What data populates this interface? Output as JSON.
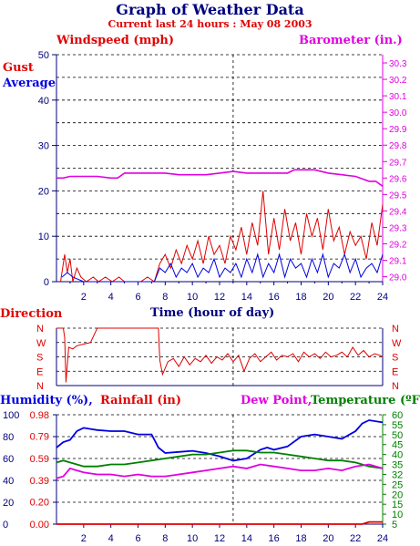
{
  "title": "Graph of Weather Data",
  "subtitle": "Current last 24 hours : May 08 2003",
  "colors": {
    "navy": "#00007f",
    "red": "#e00000",
    "magenta": "#e000e0",
    "blue": "#0000e0",
    "green": "#008000",
    "grid": "#000000"
  },
  "chart_data": [
    {
      "type": "line",
      "panel": "wind",
      "labels": {
        "left_title": "Windspeed (mph)",
        "right_title": "Barometer (in.)",
        "gust": "Gust",
        "average": "Average",
        "xlabel": "Time (hour of day)"
      },
      "x_ticks": [
        "2",
        "4",
        "6",
        "8",
        "10",
        "12",
        "14",
        "16",
        "18",
        "20",
        "22",
        "24"
      ],
      "y_left_ticks": [
        "0",
        "10",
        "20",
        "30",
        "40",
        "50"
      ],
      "y_right_ticks": [
        "29.0",
        "29.1",
        "29.2",
        "29.3",
        "29.4",
        "29.5",
        "29.6",
        "29.7",
        "29.8",
        "29.9",
        "30.0",
        "30.1",
        "30.2",
        "30.3"
      ],
      "xlim": [
        0,
        24
      ],
      "ylim": [
        0,
        50
      ],
      "y2lim": [
        28.97,
        30.35
      ],
      "grid": true,
      "series": [
        {
          "name": "Barometer",
          "axis": "right",
          "color": "#e000e0",
          "x": [
            0,
            0.5,
            1,
            2,
            3,
            4,
            4.5,
            5,
            6,
            7,
            8,
            9,
            10,
            11,
            12,
            13,
            14,
            15,
            16,
            17,
            17.5,
            18,
            19,
            20,
            21,
            22,
            23,
            23.5,
            24
          ],
          "y": [
            29.6,
            29.6,
            29.61,
            29.61,
            29.61,
            29.6,
            29.6,
            29.63,
            29.63,
            29.63,
            29.63,
            29.62,
            29.62,
            29.62,
            29.63,
            29.64,
            29.63,
            29.63,
            29.63,
            29.63,
            29.65,
            29.65,
            29.65,
            29.63,
            29.62,
            29.61,
            29.58,
            29.58,
            29.55
          ]
        },
        {
          "name": "Gust",
          "axis": "left",
          "color": "#e00000",
          "x": [
            0.3,
            0.6,
            0.8,
            1.0,
            1.2,
            1.5,
            1.8,
            2.2,
            2.7,
            3.1,
            3.6,
            4.1,
            4.6,
            5.0,
            5.6,
            6.2,
            6.7,
            7.2,
            7.6,
            8.0,
            8.4,
            8.8,
            9.2,
            9.6,
            10.0,
            10.4,
            10.8,
            11.2,
            11.6,
            12.0,
            12.4,
            12.8,
            13.2,
            13.6,
            14.0,
            14.4,
            14.8,
            15.2,
            15.6,
            16.0,
            16.4,
            16.8,
            17.2,
            17.6,
            18.0,
            18.4,
            18.8,
            19.2,
            19.6,
            20.0,
            20.4,
            20.8,
            21.2,
            21.6,
            22.0,
            22.4,
            22.8,
            23.2,
            23.6,
            24.0
          ],
          "y": [
            0,
            6,
            2,
            5,
            0,
            3,
            1,
            0,
            1,
            0,
            1,
            0,
            1,
            0,
            0,
            0,
            1,
            0,
            4,
            6,
            3,
            7,
            4,
            8,
            5,
            9,
            4,
            10,
            6,
            8,
            4,
            10,
            7,
            12,
            6,
            13,
            8,
            20,
            6,
            14,
            7,
            16,
            9,
            13,
            6,
            15,
            10,
            14,
            7,
            16,
            9,
            12,
            6,
            11,
            8,
            10,
            5,
            13,
            8,
            17
          ]
        },
        {
          "name": "Average",
          "axis": "left",
          "color": "#0000e0",
          "x": [
            0.4,
            0.8,
            1.2,
            2.0,
            3.0,
            4.0,
            5.0,
            6.0,
            7.2,
            7.6,
            8.0,
            8.4,
            8.8,
            9.2,
            9.6,
            10.0,
            10.4,
            10.8,
            11.2,
            11.6,
            12.0,
            12.4,
            12.8,
            13.2,
            13.6,
            14.0,
            14.4,
            14.8,
            15.2,
            15.6,
            16.0,
            16.4,
            16.8,
            17.2,
            17.6,
            18.0,
            18.4,
            18.8,
            19.2,
            19.6,
            20.0,
            20.4,
            20.8,
            21.2,
            21.6,
            22.0,
            22.4,
            22.8,
            23.2,
            23.6,
            24.0
          ],
          "y": [
            1,
            2,
            1,
            0,
            0,
            0,
            0,
            0,
            0,
            3,
            2,
            4,
            1,
            3,
            2,
            4,
            1,
            3,
            2,
            5,
            1,
            3,
            2,
            4,
            1,
            5,
            2,
            6,
            1,
            4,
            2,
            6,
            1,
            5,
            3,
            4,
            1,
            5,
            2,
            6,
            1,
            4,
            3,
            6,
            2,
            5,
            1,
            3,
            4,
            2,
            6
          ]
        }
      ]
    },
    {
      "type": "line",
      "panel": "direction",
      "labels": {
        "title": "Direction"
      },
      "y_ticks": [
        "N",
        "W",
        "S",
        "E",
        "N"
      ],
      "xlim": [
        0,
        24
      ],
      "ylim": [
        0,
        360
      ],
      "grid": true,
      "series": [
        {
          "name": "Direction",
          "color": "#e00000",
          "x": [
            0,
            0.5,
            0.6,
            0.7,
            0.9,
            1.2,
            1.5,
            2.0,
            2.5,
            3.0,
            4.0,
            5.0,
            6.0,
            7.0,
            7.5,
            7.6,
            7.8,
            8.2,
            8.6,
            9.0,
            9.4,
            9.8,
            10.2,
            10.6,
            11.0,
            11.4,
            11.8,
            12.2,
            12.6,
            13.0,
            13.4,
            13.8,
            14.2,
            14.6,
            15.0,
            15.4,
            15.8,
            16.2,
            16.6,
            17.0,
            17.4,
            17.8,
            18.2,
            18.6,
            19.0,
            19.4,
            19.8,
            20.2,
            20.6,
            21.0,
            21.4,
            21.8,
            22.2,
            22.6,
            23.0,
            23.4,
            23.8,
            24.0
          ],
          "y": [
            360,
            360,
            300,
            20,
            240,
            230,
            250,
            260,
            270,
            360,
            360,
            360,
            360,
            360,
            360,
            160,
            70,
            150,
            170,
            120,
            180,
            130,
            170,
            150,
            190,
            140,
            180,
            160,
            200,
            150,
            190,
            90,
            170,
            200,
            150,
            180,
            210,
            160,
            190,
            180,
            200,
            150,
            210,
            180,
            200,
            170,
            210,
            180,
            190,
            210,
            180,
            240,
            190,
            220,
            180,
            200,
            190,
            180
          ]
        }
      ]
    },
    {
      "type": "line",
      "panel": "humidity",
      "labels": {
        "humidity": "Humidity (%),",
        "rainfall": "Rainfall (in)",
        "dewpoint": "Dew Point,",
        "temperature": "Temperature (ºF)"
      },
      "y_left_ticks": [
        "0",
        "20",
        "40",
        "60",
        "80",
        "100"
      ],
      "y_rain_ticks": [
        "0.00",
        "0.20",
        "0.39",
        "0.59",
        "0.79",
        "0.98"
      ],
      "y_right_ticks": [
        "5",
        "10",
        "15",
        "20",
        "25",
        "32",
        "35",
        "40",
        "45",
        "50",
        "55",
        "60"
      ],
      "ylim": [
        0,
        100
      ],
      "y2lim": [
        5,
        60
      ],
      "rainlim": [
        0,
        0.98
      ],
      "grid": true,
      "series": [
        {
          "name": "Humidity",
          "axis": "left",
          "color": "#0000e0",
          "x": [
            0,
            0.5,
            1,
            1.5,
            2,
            2.5,
            3,
            4,
            5,
            6,
            7,
            7.5,
            8,
            9,
            10,
            11,
            12,
            13,
            14,
            15,
            15.5,
            16,
            17,
            18,
            19,
            20,
            21,
            22,
            22.5,
            23,
            24
          ],
          "y": [
            70,
            75,
            77,
            85,
            88,
            87,
            86,
            85,
            85,
            82,
            82,
            70,
            65,
            66,
            67,
            65,
            62,
            58,
            60,
            68,
            70,
            68,
            71,
            80,
            82,
            80,
            78,
            85,
            92,
            95,
            93
          ]
        },
        {
          "name": "Temperature",
          "axis": "right",
          "color": "#008000",
          "x": [
            0,
            0.5,
            1,
            1.5,
            2,
            3,
            4,
            5,
            6,
            7,
            8,
            9,
            10,
            11,
            12,
            13,
            14,
            15,
            16,
            17,
            18,
            19,
            20,
            21,
            22,
            23,
            24
          ],
          "y": [
            36,
            37,
            36,
            35,
            34,
            34,
            35,
            35,
            36,
            37,
            38,
            39,
            40,
            40,
            41,
            42,
            42,
            41,
            41,
            40,
            39,
            38,
            37,
            37,
            36,
            34,
            33
          ]
        },
        {
          "name": "Dew Point",
          "axis": "right",
          "color": "#e000e0",
          "x": [
            0,
            0.5,
            1,
            1.5,
            2,
            3,
            4,
            5,
            6,
            7,
            8,
            9,
            10,
            11,
            12,
            13,
            14,
            15,
            16,
            17,
            18,
            19,
            20,
            21,
            22,
            23,
            24
          ],
          "y": [
            28,
            29,
            33,
            32,
            31,
            30,
            30,
            29,
            30,
            29,
            29,
            30,
            31,
            32,
            33,
            34,
            33,
            35,
            34,
            33,
            32,
            32,
            33,
            32,
            34,
            35,
            33
          ]
        },
        {
          "name": "Rainfall",
          "axis": "rain",
          "color": "#e00000",
          "x": [
            0,
            22.5,
            23,
            24
          ],
          "y": [
            0,
            0,
            0.02,
            0.02
          ]
        }
      ]
    }
  ]
}
